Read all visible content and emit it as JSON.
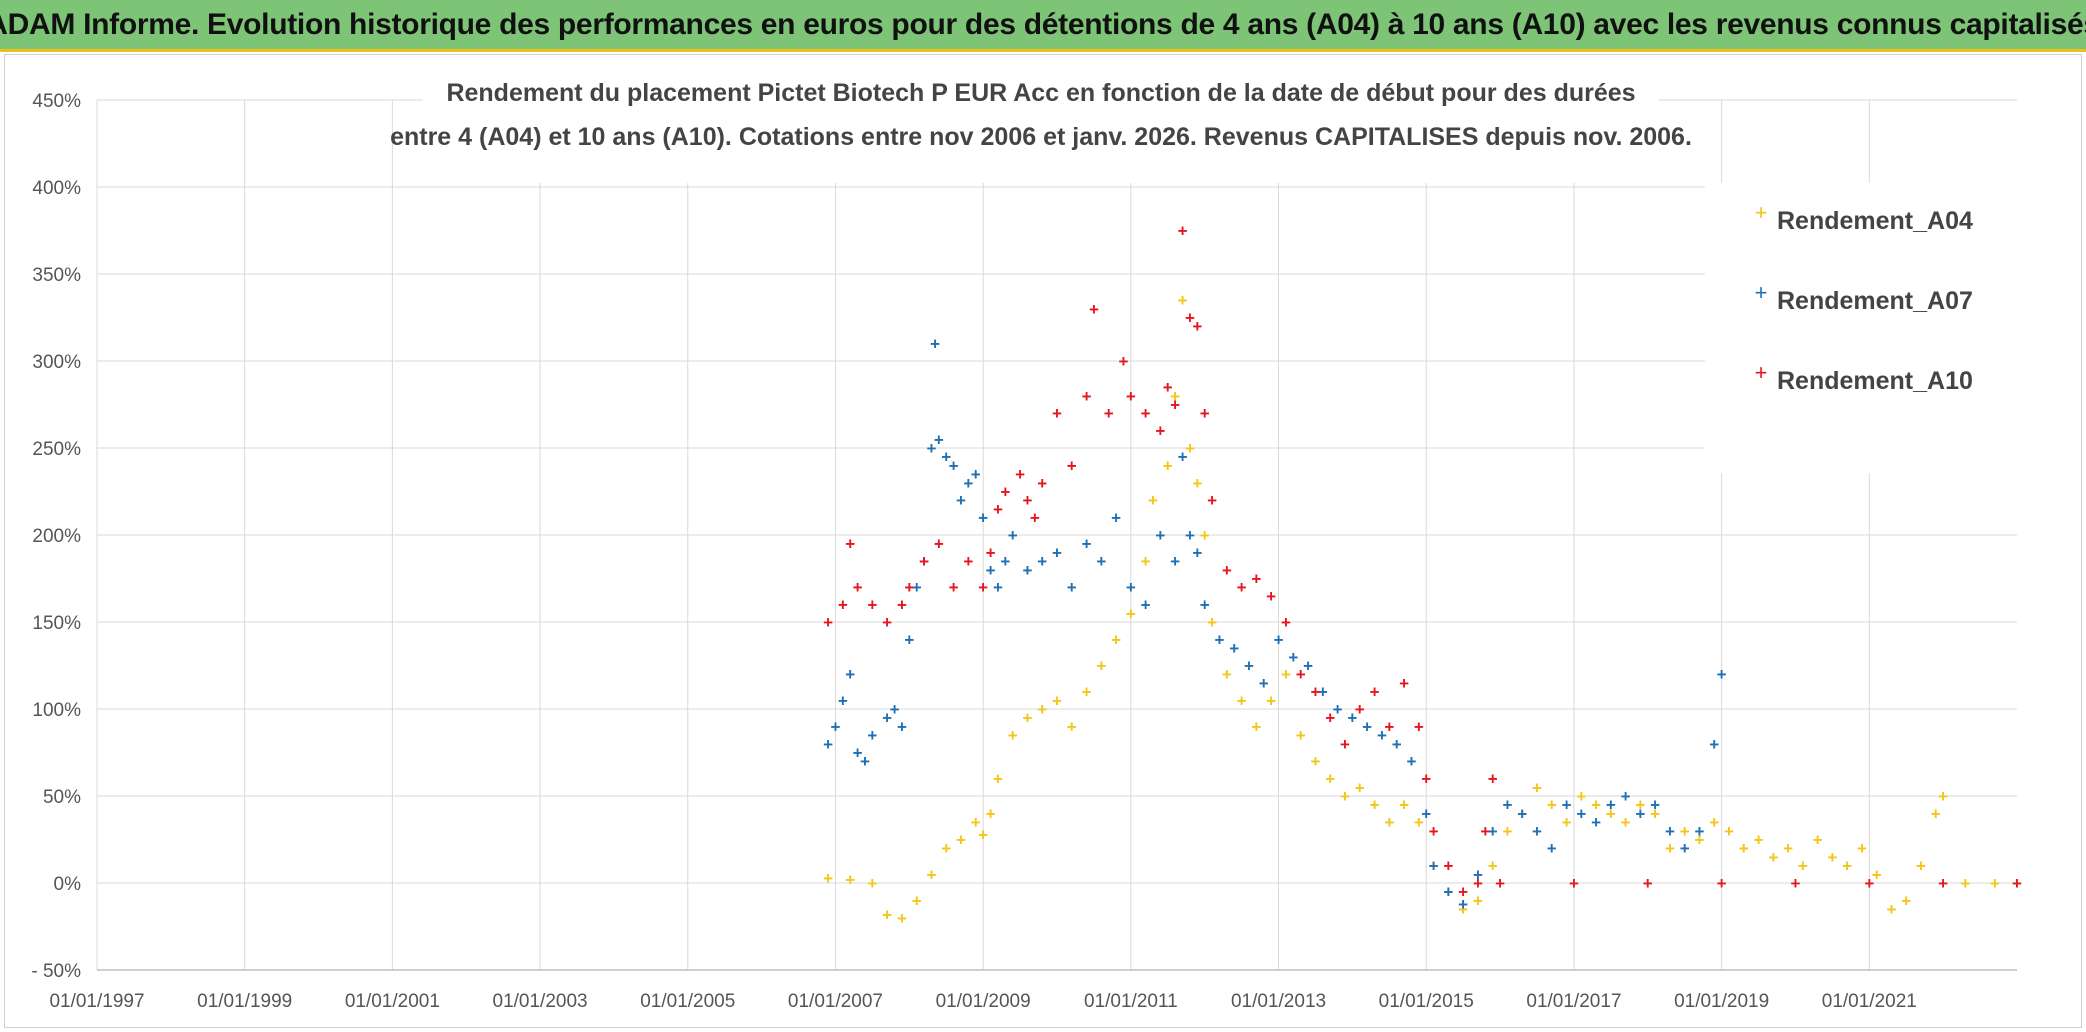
{
  "banner": {
    "text": "ADAM Informe. Evolution historique des performances en euros pour des détentions de 4 ans (A04) à 10 ans (A10) avec les revenus connus capitalisés"
  },
  "chart_data": {
    "type": "scatter",
    "title_lines": [
      "Rendement du placement Pictet Biotech P EUR Acc en fonction de la date de début pour des durées",
      "entre 4 (A04) et 10 ans (A10). Cotations entre nov 2006 et janv. 2026. Revenus CAPITALISES depuis nov. 2006."
    ],
    "xlabel": "",
    "ylabel": "",
    "x_range": [
      1997.0,
      2023.0
    ],
    "ylim": [
      -50,
      450
    ],
    "y_ticks": [
      -50,
      0,
      50,
      100,
      150,
      200,
      250,
      300,
      350,
      400,
      450
    ],
    "y_tick_labels": [
      "- 50%",
      "0%",
      "50%",
      "100%",
      "150%",
      "200%",
      "250%",
      "300%",
      "350%",
      "400%",
      "450%"
    ],
    "x_ticks": [
      1997,
      1999,
      2001,
      2003,
      2005,
      2007,
      2009,
      2011,
      2013,
      2015,
      2017,
      2019,
      2021
    ],
    "x_tick_labels": [
      "01/01/1997",
      "01/01/1999",
      "01/01/2001",
      "01/01/2003",
      "01/01/2005",
      "01/01/2007",
      "01/01/2009",
      "01/01/2011",
      "01/01/2013",
      "01/01/2015",
      "01/01/2017",
      "01/01/2019",
      "01/01/2021"
    ],
    "legend_position": "top-right",
    "series": [
      {
        "name": "Rendement_A04",
        "color": "#f5c518",
        "points": [
          [
            2006.9,
            3
          ],
          [
            2007.2,
            2
          ],
          [
            2007.5,
            0
          ],
          [
            2007.7,
            -18
          ],
          [
            2007.9,
            -20
          ],
          [
            2008.1,
            -10
          ],
          [
            2008.3,
            5
          ],
          [
            2008.5,
            20
          ],
          [
            2008.7,
            25
          ],
          [
            2008.9,
            35
          ],
          [
            2009.0,
            28
          ],
          [
            2009.1,
            40
          ],
          [
            2009.2,
            60
          ],
          [
            2009.4,
            85
          ],
          [
            2009.6,
            95
          ],
          [
            2009.8,
            100
          ],
          [
            2010.0,
            105
          ],
          [
            2010.2,
            90
          ],
          [
            2010.4,
            110
          ],
          [
            2010.6,
            125
          ],
          [
            2010.8,
            140
          ],
          [
            2011.0,
            155
          ],
          [
            2011.2,
            185
          ],
          [
            2011.3,
            220
          ],
          [
            2011.5,
            240
          ],
          [
            2011.6,
            280
          ],
          [
            2011.7,
            335
          ],
          [
            2011.8,
            250
          ],
          [
            2011.9,
            230
          ],
          [
            2012.0,
            200
          ],
          [
            2012.1,
            150
          ],
          [
            2012.3,
            120
          ],
          [
            2012.5,
            105
          ],
          [
            2012.7,
            90
          ],
          [
            2012.9,
            105
          ],
          [
            2013.1,
            120
          ],
          [
            2013.3,
            85
          ],
          [
            2013.5,
            70
          ],
          [
            2013.7,
            60
          ],
          [
            2013.9,
            50
          ],
          [
            2014.1,
            55
          ],
          [
            2014.3,
            45
          ],
          [
            2014.5,
            35
          ],
          [
            2014.7,
            45
          ],
          [
            2014.9,
            35
          ],
          [
            2015.1,
            10
          ],
          [
            2015.3,
            -5
          ],
          [
            2015.5,
            -15
          ],
          [
            2015.7,
            -10
          ],
          [
            2015.9,
            10
          ],
          [
            2016.1,
            30
          ],
          [
            2016.3,
            40
          ],
          [
            2016.5,
            55
          ],
          [
            2016.7,
            45
          ],
          [
            2016.9,
            35
          ],
          [
            2017.1,
            50
          ],
          [
            2017.3,
            45
          ],
          [
            2017.5,
            40
          ],
          [
            2017.7,
            35
          ],
          [
            2017.9,
            45
          ],
          [
            2018.1,
            40
          ],
          [
            2018.3,
            20
          ],
          [
            2018.5,
            30
          ],
          [
            2018.7,
            25
          ],
          [
            2018.9,
            35
          ],
          [
            2019.1,
            30
          ],
          [
            2019.3,
            20
          ],
          [
            2019.5,
            25
          ],
          [
            2019.7,
            15
          ],
          [
            2019.9,
            20
          ],
          [
            2020.1,
            10
          ],
          [
            2020.3,
            25
          ],
          [
            2020.5,
            15
          ],
          [
            2020.7,
            10
          ],
          [
            2020.9,
            20
          ],
          [
            2021.1,
            5
          ],
          [
            2021.3,
            -15
          ],
          [
            2021.5,
            -10
          ],
          [
            2021.7,
            10
          ],
          [
            2021.9,
            40
          ],
          [
            2022.0,
            50
          ],
          [
            2022.3,
            0
          ],
          [
            2022.7,
            0
          ],
          [
            2023.0,
            0
          ]
        ]
      },
      {
        "name": "Rendement_A07",
        "color": "#1f6fb4",
        "points": [
          [
            2006.9,
            80
          ],
          [
            2007.0,
            90
          ],
          [
            2007.1,
            105
          ],
          [
            2007.2,
            120
          ],
          [
            2007.3,
            75
          ],
          [
            2007.4,
            70
          ],
          [
            2007.5,
            85
          ],
          [
            2007.7,
            95
          ],
          [
            2007.8,
            100
          ],
          [
            2007.9,
            90
          ],
          [
            2008.0,
            140
          ],
          [
            2008.1,
            170
          ],
          [
            2008.2,
            185
          ],
          [
            2008.3,
            250
          ],
          [
            2008.35,
            310
          ],
          [
            2008.4,
            255
          ],
          [
            2008.5,
            245
          ],
          [
            2008.6,
            240
          ],
          [
            2008.7,
            220
          ],
          [
            2008.8,
            230
          ],
          [
            2008.9,
            235
          ],
          [
            2009.0,
            210
          ],
          [
            2009.1,
            180
          ],
          [
            2009.2,
            170
          ],
          [
            2009.3,
            185
          ],
          [
            2009.4,
            200
          ],
          [
            2009.6,
            180
          ],
          [
            2009.8,
            185
          ],
          [
            2010.0,
            190
          ],
          [
            2010.2,
            170
          ],
          [
            2010.4,
            195
          ],
          [
            2010.6,
            185
          ],
          [
            2010.8,
            210
          ],
          [
            2011.0,
            170
          ],
          [
            2011.2,
            160
          ],
          [
            2011.4,
            200
          ],
          [
            2011.6,
            185
          ],
          [
            2011.7,
            245
          ],
          [
            2011.8,
            200
          ],
          [
            2011.9,
            190
          ],
          [
            2012.0,
            160
          ],
          [
            2012.2,
            140
          ],
          [
            2012.4,
            135
          ],
          [
            2012.6,
            125
          ],
          [
            2012.8,
            115
          ],
          [
            2013.0,
            140
          ],
          [
            2013.2,
            130
          ],
          [
            2013.4,
            125
          ],
          [
            2013.6,
            110
          ],
          [
            2013.8,
            100
          ],
          [
            2014.0,
            95
          ],
          [
            2014.2,
            90
          ],
          [
            2014.4,
            85
          ],
          [
            2014.6,
            80
          ],
          [
            2014.8,
            70
          ],
          [
            2015.0,
            40
          ],
          [
            2015.1,
            10
          ],
          [
            2015.3,
            -5
          ],
          [
            2015.5,
            -12
          ],
          [
            2015.7,
            5
          ],
          [
            2015.9,
            30
          ],
          [
            2016.1,
            45
          ],
          [
            2016.3,
            40
          ],
          [
            2016.5,
            30
          ],
          [
            2016.7,
            20
          ],
          [
            2016.9,
            45
          ],
          [
            2017.1,
            40
          ],
          [
            2017.3,
            35
          ],
          [
            2017.5,
            45
          ],
          [
            2017.7,
            50
          ],
          [
            2017.9,
            40
          ],
          [
            2018.1,
            45
          ],
          [
            2018.3,
            30
          ],
          [
            2018.5,
            20
          ],
          [
            2018.7,
            30
          ],
          [
            2018.9,
            80
          ],
          [
            2019.0,
            120
          ]
        ]
      },
      {
        "name": "Rendement_A10",
        "color": "#e8141c",
        "points": [
          [
            2006.9,
            150
          ],
          [
            2007.1,
            160
          ],
          [
            2007.2,
            195
          ],
          [
            2007.3,
            170
          ],
          [
            2007.5,
            160
          ],
          [
            2007.7,
            150
          ],
          [
            2007.9,
            160
          ],
          [
            2008.0,
            170
          ],
          [
            2008.2,
            185
          ],
          [
            2008.4,
            195
          ],
          [
            2008.6,
            170
          ],
          [
            2008.8,
            185
          ],
          [
            2009.0,
            170
          ],
          [
            2009.1,
            190
          ],
          [
            2009.2,
            215
          ],
          [
            2009.3,
            225
          ],
          [
            2009.5,
            235
          ],
          [
            2009.6,
            220
          ],
          [
            2009.7,
            210
          ],
          [
            2009.8,
            230
          ],
          [
            2010.0,
            270
          ],
          [
            2010.2,
            240
          ],
          [
            2010.4,
            280
          ],
          [
            2010.5,
            330
          ],
          [
            2010.7,
            270
          ],
          [
            2010.9,
            300
          ],
          [
            2011.0,
            280
          ],
          [
            2011.2,
            270
          ],
          [
            2011.4,
            260
          ],
          [
            2011.5,
            285
          ],
          [
            2011.6,
            275
          ],
          [
            2011.7,
            375
          ],
          [
            2011.8,
            325
          ],
          [
            2011.9,
            320
          ],
          [
            2012.0,
            270
          ],
          [
            2012.1,
            220
          ],
          [
            2012.3,
            180
          ],
          [
            2012.5,
            170
          ],
          [
            2012.7,
            175
          ],
          [
            2012.9,
            165
          ],
          [
            2013.1,
            150
          ],
          [
            2013.3,
            120
          ],
          [
            2013.5,
            110
          ],
          [
            2013.7,
            95
          ],
          [
            2013.9,
            80
          ],
          [
            2014.1,
            100
          ],
          [
            2014.3,
            110
          ],
          [
            2014.5,
            90
          ],
          [
            2014.7,
            115
          ],
          [
            2014.9,
            90
          ],
          [
            2015.0,
            60
          ],
          [
            2015.1,
            30
          ],
          [
            2015.3,
            10
          ],
          [
            2015.5,
            -5
          ],
          [
            2015.7,
            0
          ],
          [
            2015.8,
            30
          ],
          [
            2015.9,
            60
          ],
          [
            2016.0,
            0
          ],
          [
            2017.0,
            0
          ],
          [
            2018.0,
            0
          ],
          [
            2019.0,
            0
          ],
          [
            2020.0,
            0
          ],
          [
            2021.0,
            0
          ],
          [
            2022.0,
            0
          ],
          [
            2023.0,
            0
          ]
        ]
      }
    ]
  }
}
